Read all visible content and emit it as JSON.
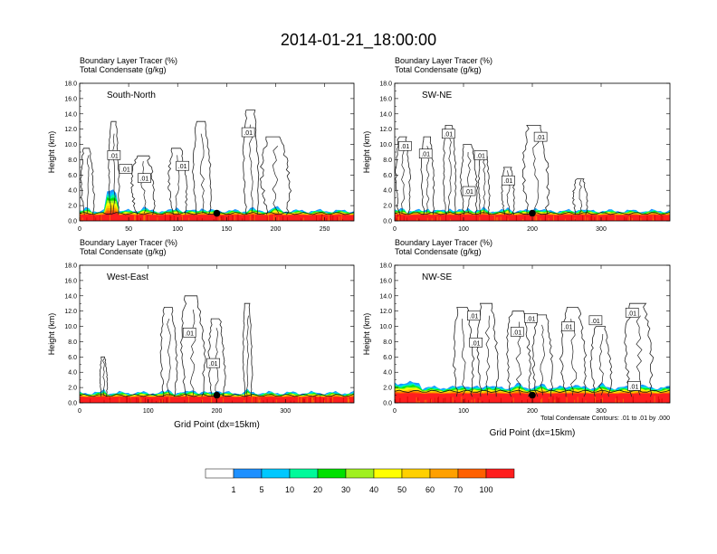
{
  "main_title": "2014-01-21_18:00:00",
  "colors": {
    "axis": "#000000",
    "contour": "#222222",
    "background": "#ffffff"
  },
  "chart_data": [
    {
      "type": "heatmap",
      "panel": "South-North",
      "title_lines": [
        "Boundary Layer Tracer   (%)",
        "Total Condensate   (g/kg)"
      ],
      "inner_label": "South-North",
      "ylabel": "Height (km)",
      "xlabel": "",
      "xlim": [
        0,
        280
      ],
      "ylim": [
        0,
        18
      ],
      "xticks": [
        0,
        50,
        100,
        150,
        200,
        250
      ],
      "yticks": [
        "0.0",
        "2.0",
        "4.0",
        "6.0",
        "8.0",
        "10.0",
        "12.0",
        "14.0",
        "16.0",
        "18.0"
      ],
      "boundary_layer_top_km": 1.3,
      "marker_x": 140,
      "contour_labels": [
        {
          "text": ".01",
          "x": 35,
          "y": 8.6
        },
        {
          "text": ".01",
          "x": 47,
          "y": 6.8
        },
        {
          "text": ".01",
          "x": 66,
          "y": 5.6
        },
        {
          "text": ".01",
          "x": 105,
          "y": 7.2
        },
        {
          "text": ".01",
          "x": 172,
          "y": 11.6
        }
      ]
    },
    {
      "type": "heatmap",
      "panel": "SW-NE",
      "title_lines": [
        "Boundary Layer Tracer   (%)",
        "Total Condensate   (g/kg)"
      ],
      "inner_label": "SW-NE",
      "ylabel": "Height (km)",
      "xlabel": "",
      "xlim": [
        0,
        400
      ],
      "ylim": [
        0,
        18
      ],
      "xticks": [
        0,
        100,
        200,
        300
      ],
      "yticks": [
        "0.0",
        "2.0",
        "4.0",
        "6.0",
        "8.0",
        "10.0",
        "12.0",
        "14.0",
        "16.0",
        "18.0"
      ],
      "boundary_layer_top_km": 1.3,
      "marker_x": 200,
      "contour_labels": [
        {
          "text": ".01",
          "x": 15,
          "y": 9.8
        },
        {
          "text": ".01",
          "x": 45,
          "y": 8.8
        },
        {
          "text": ".01",
          "x": 78,
          "y": 11.4
        },
        {
          "text": ".01",
          "x": 108,
          "y": 3.9
        },
        {
          "text": ".01",
          "x": 125,
          "y": 8.6
        },
        {
          "text": ".01",
          "x": 165,
          "y": 5.3
        },
        {
          "text": ".01",
          "x": 212,
          "y": 11.0
        }
      ]
    },
    {
      "type": "heatmap",
      "panel": "West-East",
      "title_lines": [
        "Boundary Layer Tracer   (%)",
        "Total Condensate   (g/kg)"
      ],
      "inner_label": "West-East",
      "ylabel": "Height (km)",
      "xlabel": "Grid Point (dx=15km)",
      "xlim": [
        0,
        400
      ],
      "ylim": [
        0,
        18
      ],
      "xticks": [
        0,
        100,
        200,
        300
      ],
      "yticks": [
        "0.0",
        "2.0",
        "4.0",
        "6.0",
        "8.0",
        "10.0",
        "12.0",
        "14.0",
        "16.0",
        "18.0"
      ],
      "boundary_layer_top_km": 1.3,
      "marker_x": 200,
      "contour_labels": [
        {
          "text": ".01",
          "x": 160,
          "y": 9.2
        },
        {
          "text": ".01",
          "x": 195,
          "y": 5.2
        }
      ]
    },
    {
      "type": "heatmap",
      "panel": "NW-SE",
      "title_lines": [
        "Boundary Layer Tracer   (%)",
        "Total Condensate   (g/kg)"
      ],
      "inner_label": "NW-SE",
      "ylabel": "Height (km)",
      "xlabel": "Grid Point (dx=15km)",
      "xlim": [
        0,
        400
      ],
      "ylim": [
        0,
        18
      ],
      "xticks": [
        0,
        100,
        200,
        300
      ],
      "yticks": [
        "0.0",
        "2.0",
        "4.0",
        "6.0",
        "8.0",
        "10.0",
        "12.0",
        "14.0",
        "16.0",
        "18.0"
      ],
      "boundary_layer_top_km": 2.0,
      "marker_x": 200,
      "contour_labels": [
        {
          "text": ".01",
          "x": 115,
          "y": 11.4
        },
        {
          "text": ".01",
          "x": 118,
          "y": 7.9
        },
        {
          "text": ".01",
          "x": 178,
          "y": 9.3
        },
        {
          "text": ".01",
          "x": 198,
          "y": 11.1
        },
        {
          "text": ".01",
          "x": 252,
          "y": 10.0
        },
        {
          "text": ".01",
          "x": 292,
          "y": 10.8
        },
        {
          "text": ".01",
          "x": 345,
          "y": 11.8
        },
        {
          "text": ".01",
          "x": 348,
          "y": 2.2
        }
      ],
      "footnote": "Total Condensate Contours: .01 to .01 by .000"
    }
  ],
  "colorbar": {
    "labels": [
      "1",
      "5",
      "10",
      "20",
      "30",
      "40",
      "50",
      "60",
      "70",
      "100"
    ],
    "colors": [
      "#ffffff",
      "#1e90ff",
      "#00c8ff",
      "#00fa9a",
      "#00e000",
      "#a0f020",
      "#ffff00",
      "#ffd000",
      "#ffa000",
      "#ff6000",
      "#ff1e1e"
    ]
  }
}
